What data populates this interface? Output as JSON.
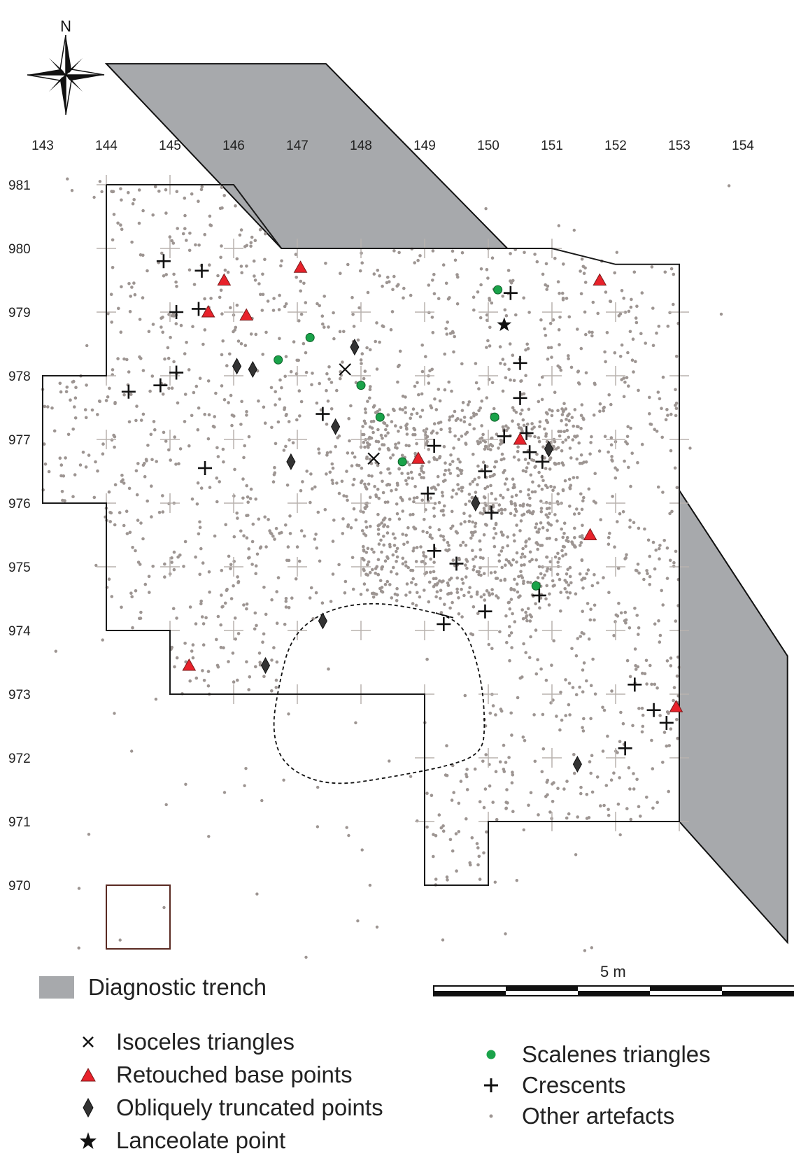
{
  "map": {
    "north_label": "N",
    "x_ticks": [
      143,
      144,
      145,
      146,
      147,
      148,
      149,
      150,
      151,
      152,
      153,
      154
    ],
    "y_ticks": [
      981,
      980,
      979,
      978,
      977,
      976,
      975,
      974,
      973,
      972,
      971,
      970
    ],
    "scale_label": "5 m",
    "colors": {
      "trench": "#a7a9ac",
      "artefact_dot": "#9d9592",
      "scalene": "#1aa34a",
      "retouched": "#e8222b",
      "outline": "#1a1a1a",
      "hearth_square": "#5a2a22"
    },
    "excavation_outline": [
      [
        144,
        981
      ],
      [
        146,
        981
      ],
      [
        146.75,
        980
      ],
      [
        151,
        980
      ],
      [
        152,
        979.75
      ],
      [
        153,
        979.75
      ],
      [
        153,
        971
      ],
      [
        150,
        971
      ],
      [
        150,
        970
      ],
      [
        149,
        970
      ],
      [
        149,
        973
      ],
      [
        145,
        973
      ],
      [
        145,
        974
      ],
      [
        144,
        974
      ],
      [
        144,
        976
      ],
      [
        143,
        976
      ],
      [
        143,
        978
      ],
      [
        144,
        978
      ],
      [
        144,
        981
      ]
    ],
    "trenches": [
      [
        [
          144,
          982.9
        ],
        [
          147.45,
          982.9
        ],
        [
          150.3,
          980
        ],
        [
          146.75,
          980
        ]
      ],
      [
        [
          153,
          976.2
        ],
        [
          154.7,
          973.6
        ],
        [
          154.7,
          969.1
        ],
        [
          153,
          971
        ]
      ]
    ],
    "hearth_outline": [
      [
        149.45,
        974.2
      ],
      [
        148.9,
        974.35
      ],
      [
        148.1,
        974.45
      ],
      [
        147.4,
        974.3
      ],
      [
        146.9,
        973.9
      ],
      [
        146.7,
        973.1
      ],
      [
        146.6,
        972.4
      ],
      [
        146.8,
        971.85
      ],
      [
        147.5,
        971.55
      ],
      [
        148.5,
        971.7
      ],
      [
        149.5,
        971.9
      ],
      [
        149.9,
        972.1
      ],
      [
        149.95,
        972.5
      ],
      [
        149.9,
        973.2
      ],
      [
        149.7,
        973.9
      ]
    ],
    "hearth_square": [
      [
        144,
        970
      ],
      [
        145,
        970
      ],
      [
        145,
        969
      ],
      [
        144,
        969
      ]
    ]
  },
  "symbols": {
    "isoceles": [
      [
        147.75,
        978.1
      ],
      [
        148.2,
        976.7
      ]
    ],
    "retouched": [
      [
        145.85,
        979.5
      ],
      [
        147.05,
        979.7
      ],
      [
        145.6,
        979
      ],
      [
        146.2,
        978.95
      ],
      [
        151.75,
        979.5
      ],
      [
        150.5,
        977
      ],
      [
        148.9,
        976.7
      ],
      [
        151.6,
        975.5
      ],
      [
        145.3,
        973.45
      ],
      [
        152.95,
        972.8
      ]
    ],
    "oblique": [
      [
        147.9,
        978.45
      ],
      [
        146.05,
        978.15
      ],
      [
        146.3,
        978.1
      ],
      [
        147.6,
        977.2
      ],
      [
        146.9,
        976.65
      ],
      [
        150.95,
        976.85
      ],
      [
        149.8,
        976
      ],
      [
        147.4,
        974.15
      ],
      [
        146.5,
        973.45
      ],
      [
        151.4,
        971.9
      ]
    ],
    "lanceolate": [
      [
        150.25,
        978.8
      ]
    ],
    "scalene": [
      [
        150.15,
        979.35
      ],
      [
        147.2,
        978.6
      ],
      [
        146.7,
        978.25
      ],
      [
        148,
        977.85
      ],
      [
        148.3,
        977.35
      ],
      [
        150.1,
        977.35
      ],
      [
        148.65,
        976.65
      ],
      [
        150.75,
        974.7
      ]
    ],
    "crescent": [
      [
        144.9,
        979.8
      ],
      [
        145.5,
        979.65
      ],
      [
        145.1,
        979
      ],
      [
        145.45,
        979.05
      ],
      [
        150.35,
        979.3
      ],
      [
        145.1,
        978.05
      ],
      [
        144.85,
        977.85
      ],
      [
        144.35,
        977.75
      ],
      [
        150.5,
        978.2
      ],
      [
        150.5,
        977.65
      ],
      [
        147.4,
        977.4
      ],
      [
        150.25,
        977.05
      ],
      [
        150.6,
        977.1
      ],
      [
        150.65,
        976.8
      ],
      [
        150.85,
        976.65
      ],
      [
        149.15,
        976.9
      ],
      [
        145.55,
        976.55
      ],
      [
        149.95,
        976.5
      ],
      [
        149.05,
        976.15
      ],
      [
        150.05,
        975.85
      ],
      [
        149.15,
        975.25
      ],
      [
        149.5,
        975.05
      ],
      [
        149.95,
        974.3
      ],
      [
        149.3,
        974.1
      ],
      [
        150.8,
        974.55
      ],
      [
        152.3,
        973.15
      ],
      [
        152.6,
        972.75
      ],
      [
        152.8,
        972.55
      ],
      [
        152.15,
        972.15
      ]
    ]
  },
  "legend": {
    "trench_label": "Diagnostic trench",
    "items_left": [
      {
        "key": "isoceles",
        "label": "Isoceles triangles"
      },
      {
        "key": "retouched",
        "label": "Retouched base points"
      },
      {
        "key": "oblique",
        "label": "Obliquely truncated points"
      },
      {
        "key": "lanceolate",
        "label": "Lanceolate point"
      }
    ],
    "items_right": [
      {
        "key": "scalene",
        "label": "Scalenes triangles"
      },
      {
        "key": "crescent",
        "label": "Crescents"
      },
      {
        "key": "other",
        "label": "Other artefacts"
      }
    ]
  }
}
